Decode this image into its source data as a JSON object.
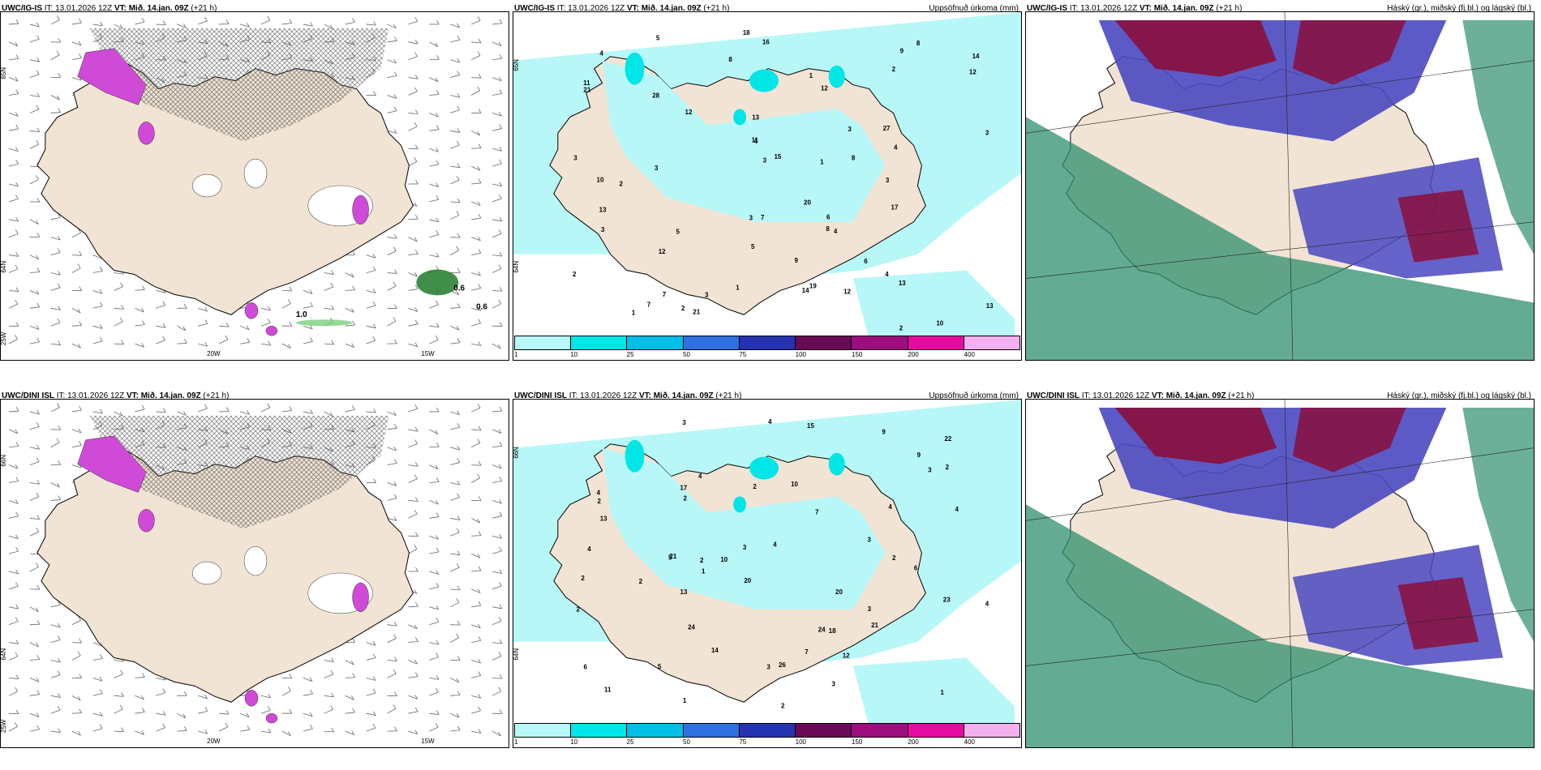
{
  "panels": [
    {
      "id": "p1",
      "model": "UWC/IG-IS",
      "it": "IT: 13.01.2026 12Z",
      "vt": "VT: Mið. 14.jan. 09Z",
      "lead": "(+21 h)",
      "right": "",
      "type": "wind",
      "lat_labels": [
        "65N",
        "64N",
        "25W"
      ],
      "lon_labels": [
        "20W",
        "15W"
      ],
      "values": [
        "0.6",
        "0.6",
        "1.0"
      ]
    },
    {
      "id": "p2",
      "model": "UWC/IG-IS",
      "it": "IT: 13.01.2026 12Z",
      "vt": "VT: Mið. 14.jan. 09Z",
      "lead": "(+21 h)",
      "right": "Uppsöfnuð úrkoma (mm)",
      "type": "precip",
      "lat_labels": [
        "65N",
        "64N"
      ],
      "values": [
        "3",
        "16",
        "27",
        "14",
        "11",
        "10",
        "2",
        "12",
        "13",
        "8",
        "15",
        "17",
        "18",
        "21",
        "28",
        "12",
        "19",
        "10",
        "20",
        "5",
        "6",
        "13",
        "12",
        "4",
        "7",
        "3",
        "6",
        "5",
        "21",
        "14",
        "13",
        "2",
        "1",
        "1",
        "2",
        "3",
        "4",
        "4",
        "3",
        "12",
        "9",
        "8",
        "13",
        "3",
        "7",
        "5",
        "2",
        "2",
        "1",
        "3",
        "3",
        "4",
        "4",
        "3",
        "12",
        "8",
        "8",
        "11",
        "9",
        "1",
        "3",
        "7"
      ]
    },
    {
      "id": "p3",
      "model": "UWC/IG-IS",
      "it": "IT: 13.01.2026 12Z",
      "vt": "VT: Mið. 14.jan. 09Z",
      "lead": "(+21 h)",
      "right": "Háský (gr.), miðský (fj.bl.) og lágský (bl.)",
      "type": "cloud"
    },
    {
      "id": "p4",
      "model": "UWC/DINI ISL",
      "it": "IT: 13.01.2026 12Z",
      "vt": "VT: Mið. 14.jan. 09Z",
      "lead": "(+21 h)",
      "right": "",
      "type": "wind",
      "lat_labels": [
        "66N",
        "64N",
        "25W"
      ],
      "lon_labels": [
        "20W",
        "15W"
      ],
      "values": []
    },
    {
      "id": "p5",
      "model": "UWC/DINI ISL",
      "it": "IT: 13.01.2026 12Z",
      "vt": "VT: Mið. 14.jan. 09Z",
      "lead": "(+21 h)",
      "right": "Uppsöfnuð úrkoma (mm)",
      "type": "precip",
      "lat_labels": [
        "66N",
        "64N"
      ],
      "values": [
        "15",
        "4",
        "12",
        "24",
        "10",
        "20",
        "26",
        "22",
        "21",
        "18",
        "20",
        "21",
        "24",
        "17",
        "10",
        "9",
        "2",
        "4",
        "7",
        "13",
        "9",
        "23",
        "11",
        "14",
        "13",
        "7",
        "6",
        "3",
        "2",
        "2",
        "3",
        "6",
        "4",
        "5",
        "3",
        "2",
        "2",
        "3",
        "2",
        "3",
        "4",
        "3",
        "1",
        "2",
        "2",
        "4",
        "4",
        "4",
        "5",
        "4",
        "1",
        "2",
        "2",
        "1",
        "3"
      ]
    },
    {
      "id": "p6",
      "model": "UWC/DINI ISL",
      "it": "IT: 13.01.2026 12Z",
      "vt": "VT: Mið. 14.jan. 09Z",
      "lead": "(+21 h)",
      "right": "Háský (gr.), miðský (fj.bl.) og lágský (bl.)",
      "type": "cloud"
    }
  ],
  "colorbar": {
    "labels": [
      "1",
      "10",
      "25",
      "50",
      "75",
      "100",
      "150",
      "200",
      "400"
    ],
    "colors": [
      "#b8f7f7",
      "#00e6e6",
      "#00bfe6",
      "#2f6fe0",
      "#2533b0",
      "#6a0a57",
      "#9c0e7e",
      "#e60aa0",
      "#f2b0ee"
    ]
  },
  "colors": {
    "land": "#f2e4d4",
    "snow": "#ffffff",
    "precip_light": "#b8f7f7",
    "high_cloud": "#2f8f6f",
    "mid_cloud": "#4a48c0",
    "low_cloud": "#8a0e3c",
    "magenta": "#d04ad8",
    "green": "#1f7a2a"
  }
}
